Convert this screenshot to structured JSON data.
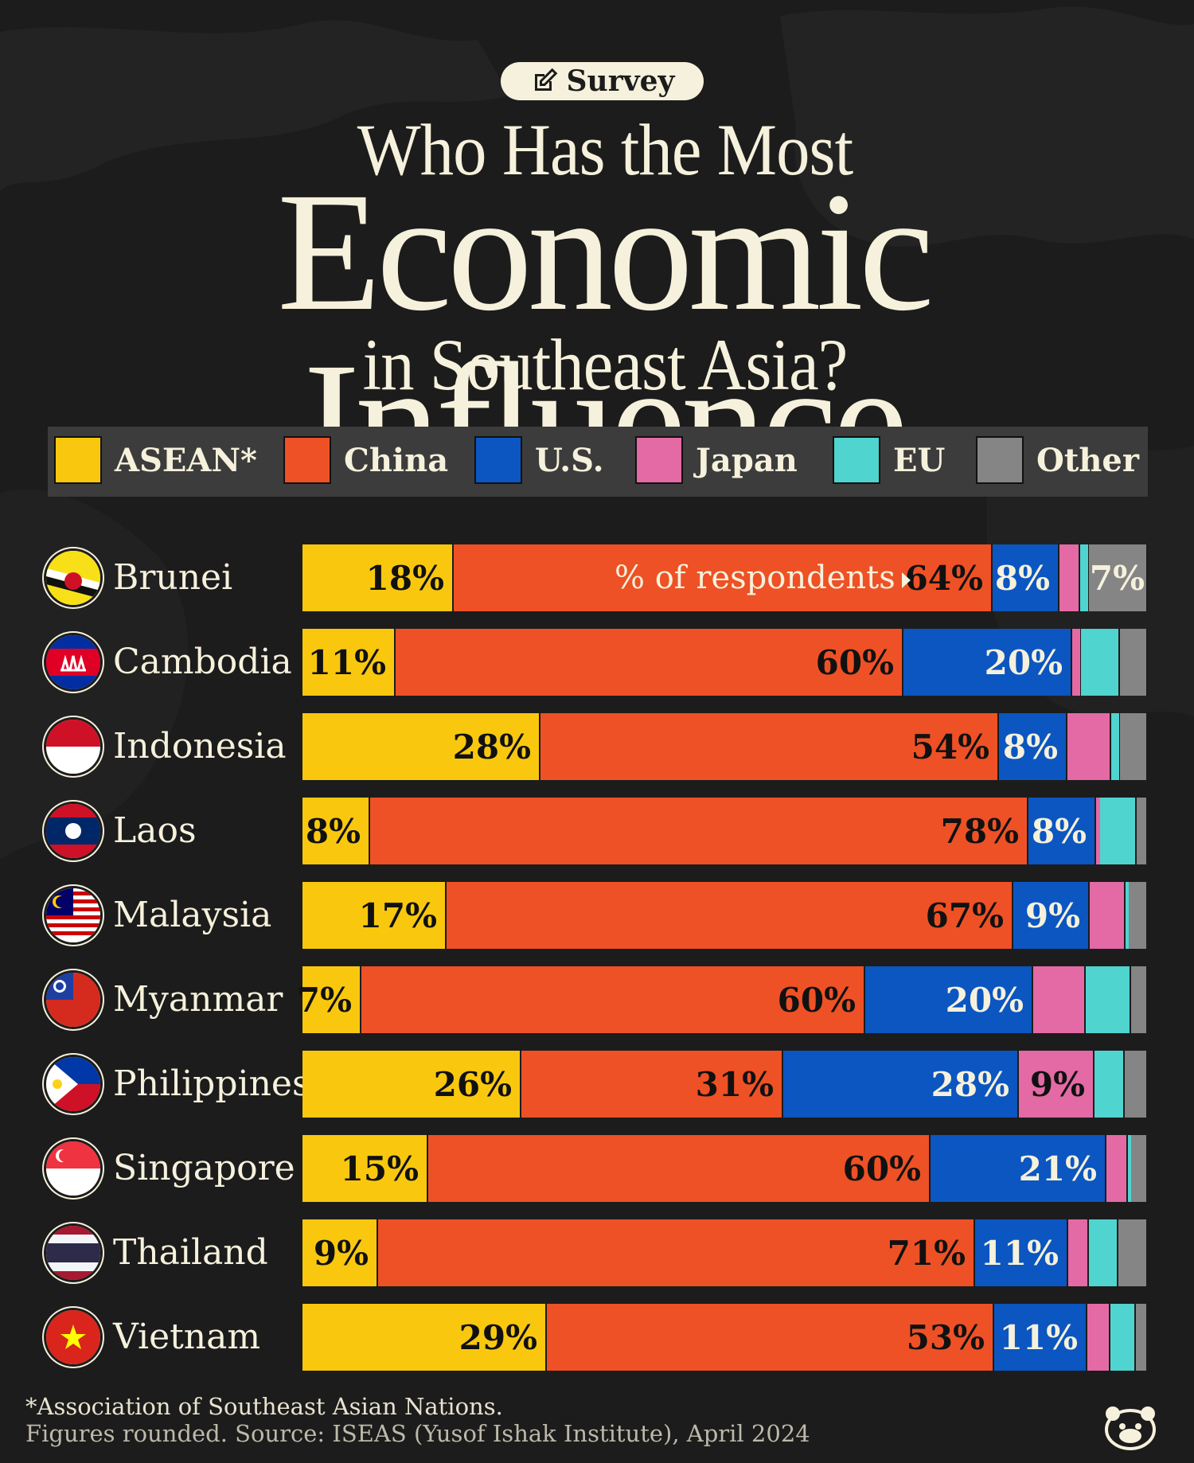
{
  "header": {
    "badge": "Survey",
    "title_line1": "Who Has the Most",
    "title_line2": "Economic Influence",
    "title_line3": "in Southeast Asia?"
  },
  "legend": [
    {
      "key": "asean",
      "label": "ASEAN*",
      "color": "#f9c80e"
    },
    {
      "key": "china",
      "label": "China",
      "color": "#ee5125"
    },
    {
      "key": "us",
      "label": "U.S.",
      "color": "#0b56c1"
    },
    {
      "key": "japan",
      "label": "Japan",
      "color": "#e36aa4"
    },
    {
      "key": "eu",
      "label": "EU",
      "color": "#4fd4d0"
    },
    {
      "key": "other",
      "label": "Other",
      "color": "#858585"
    }
  ],
  "annotation": "% of respondents",
  "chart_data": {
    "type": "bar",
    "orientation": "horizontal",
    "stacked": true,
    "unit": "% of respondents",
    "categories": [
      "Brunei",
      "Cambodia",
      "Indonesia",
      "Laos",
      "Malaysia",
      "Myanmar",
      "Philippines",
      "Singapore",
      "Thailand",
      "Vietnam"
    ],
    "series": [
      {
        "name": "ASEAN*",
        "values": [
          18,
          11,
          28,
          8,
          17,
          7,
          26,
          15,
          9,
          29
        ]
      },
      {
        "name": "China",
        "values": [
          64,
          60,
          54,
          78,
          67,
          60,
          31,
          60,
          71,
          53
        ]
      },
      {
        "name": "U.S.",
        "values": [
          8,
          20,
          8,
          8,
          9,
          20,
          28,
          21,
          11,
          11
        ]
      },
      {
        "name": "Japan",
        "values": [
          2.5,
          1,
          5.2,
          0.4,
          4.3,
          6.2,
          9,
          2.5,
          2.5,
          2.8
        ]
      },
      {
        "name": "EU",
        "values": [
          1,
          4.6,
          1,
          4.4,
          0.3,
          5.4,
          3.6,
          0.4,
          3.5,
          3
        ]
      },
      {
        "name": "Other",
        "values": [
          7,
          3.3,
          3.3,
          1.3,
          2.3,
          2,
          2.7,
          2,
          3.5,
          1.4
        ]
      }
    ],
    "labels": [
      [
        "18%",
        "64%",
        "8%",
        "",
        "",
        "7%"
      ],
      [
        "11%",
        "60%",
        "20%",
        "",
        "",
        ""
      ],
      [
        "28%",
        "54%",
        "8%",
        "",
        "",
        ""
      ],
      [
        "8%",
        "78%",
        "8%",
        "",
        "",
        ""
      ],
      [
        "17%",
        "67%",
        "9%",
        "",
        "",
        ""
      ],
      [
        "7%",
        "60%",
        "20%",
        "",
        "",
        ""
      ],
      [
        "26%",
        "31%",
        "28%",
        "9%",
        "",
        ""
      ],
      [
        "15%",
        "60%",
        "21%",
        "",
        "",
        ""
      ],
      [
        "9%",
        "71%",
        "11%",
        "",
        "",
        ""
      ],
      [
        "29%",
        "53%",
        "11%",
        "",
        "",
        ""
      ]
    ],
    "xlim": [
      0,
      100
    ],
    "legend_position": "top"
  },
  "footer": {
    "note": "*Association of Southeast Asian Nations.",
    "source": "Figures rounded. Source: ISEAS (Yusof Ishak Institute), April 2024"
  }
}
